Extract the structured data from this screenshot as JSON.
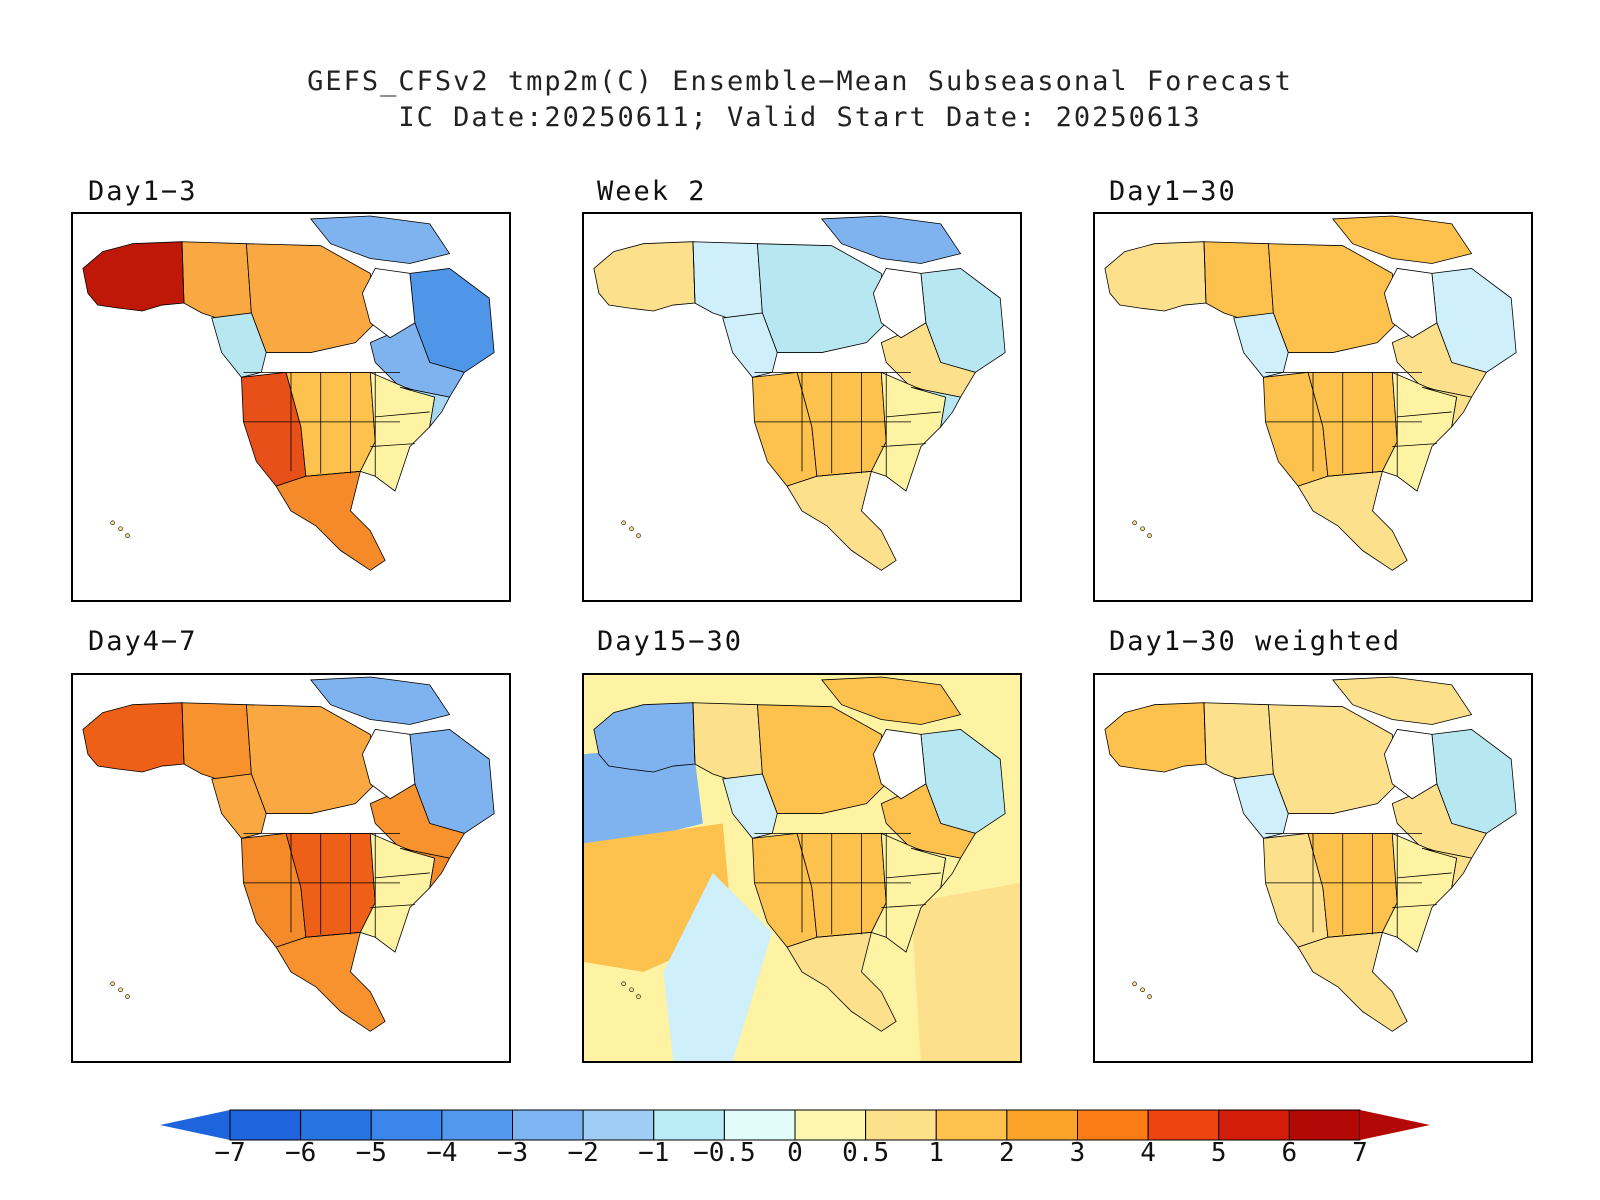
{
  "title_line1": "GEFS_CFSv2 tmp2m(C) Ensemble−Mean Subseasonal Forecast",
  "title_line2": "IC Date:20250611; Valid Start Date: 20250613",
  "panels": [
    {
      "label": "Day1−3",
      "ocean": false,
      "regions": {
        "alaska": "#c01808",
        "yukon": "#f9a842",
        "canada_nw": "#f9a842",
        "arctic": "#7fb3f0",
        "hudson_e": "#4f95e8",
        "quebec": "#7fb3f0",
        "bc": "#b7e8f2",
        "us_west": "#e8501a",
        "us_plains": "#fcc24d",
        "us_east": "#fdf3a3",
        "ne_us": "#a7d7f2",
        "mexico": "#f58a2a"
      }
    },
    {
      "label": "Day4−7",
      "ocean": false,
      "regions": {
        "alaska": "#ee6018",
        "yukon": "#f8922f",
        "canada_nw": "#f9a842",
        "arctic": "#7fb3f0",
        "hudson_e": "#7fb3f0",
        "quebec": "#f8922f",
        "bc": "#f9a842",
        "us_west": "#f58a2a",
        "us_plains": "#ee6018",
        "us_east": "#fdf3a3",
        "ne_us": "#f58a2a",
        "mexico": "#f8922f"
      }
    },
    {
      "label": "Week 2",
      "ocean": false,
      "regions": {
        "alaska": "#fce08c",
        "yukon": "#cfeffb",
        "canada_nw": "#b7e8f2",
        "arctic": "#7fb3f0",
        "hudson_e": "#b7e8f2",
        "quebec": "#fce08c",
        "bc": "#cfeffb",
        "us_west": "#fcc24d",
        "us_plains": "#fcc24d",
        "us_east": "#fdf3a3",
        "ne_us": "#b7e8f2",
        "mexico": "#fce08c"
      }
    },
    {
      "label": "Day15−30",
      "ocean": true,
      "regions": {
        "alaska": "#7fb3f0",
        "yukon": "#fce08c",
        "canada_nw": "#fcc24d",
        "arctic": "#fcc24d",
        "hudson_e": "#b7e8f2",
        "quebec": "#fcc24d",
        "bc": "#cfeffb",
        "us_west": "#fcc24d",
        "us_plains": "#fcc24d",
        "us_east": "#fdf3a3",
        "ne_us": "#fdf3a3",
        "mexico": "#fce08c"
      }
    },
    {
      "label": "Day1−30",
      "ocean": false,
      "regions": {
        "alaska": "#fce08c",
        "yukon": "#fcc24d",
        "canada_nw": "#fcc24d",
        "arctic": "#fcc24d",
        "hudson_e": "#cfeffb",
        "quebec": "#fce08c",
        "bc": "#cfeffb",
        "us_west": "#fcc24d",
        "us_plains": "#fcc24d",
        "us_east": "#fdf3a3",
        "ne_us": "#fce08c",
        "mexico": "#fce08c"
      }
    },
    {
      "label": "Day1−30 weighted",
      "ocean": false,
      "regions": {
        "alaska": "#fcc24d",
        "yukon": "#fce08c",
        "canada_nw": "#fce08c",
        "arctic": "#fce08c",
        "hudson_e": "#b7e8f2",
        "quebec": "#fce08c",
        "bc": "#cfeffb",
        "us_west": "#fce08c",
        "us_plains": "#fcc24d",
        "us_east": "#fdf3a3",
        "ne_us": "#fce08c",
        "mexico": "#fce08c"
      }
    }
  ],
  "colorbar": {
    "labels": [
      "−7",
      "−6",
      "−5",
      "−4",
      "−3",
      "−2",
      "−1",
      "−0.5",
      "0",
      "0.5",
      "1",
      "2",
      "3",
      "4",
      "5",
      "6",
      "7"
    ],
    "colors": [
      "#1e64dc",
      "#2874e4",
      "#3a86ea",
      "#5299ee",
      "#7db5f3",
      "#9fcdf5",
      "#b9ecf5",
      "#e2fbfb",
      "#fdf6ae",
      "#fde08a",
      "#fdc24e",
      "#fca32a",
      "#fb7b14",
      "#ee4410",
      "#d41c0a",
      "#b20806"
    ]
  }
}
